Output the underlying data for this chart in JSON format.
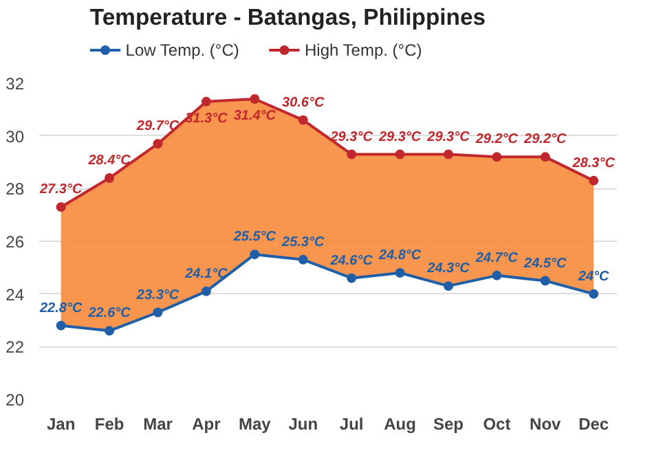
{
  "chart_data": {
    "type": "line",
    "title": "Temperature - Batangas, Philippines",
    "categories": [
      "Jan",
      "Feb",
      "Mar",
      "Apr",
      "May",
      "Jun",
      "Jul",
      "Aug",
      "Sep",
      "Oct",
      "Nov",
      "Dec"
    ],
    "series": [
      {
        "name": "Low Temp. (°C)",
        "color": "#1f5fa8",
        "values": [
          22.8,
          22.6,
          23.3,
          24.1,
          25.5,
          25.3,
          24.6,
          24.8,
          24.3,
          24.7,
          24.5,
          24.0
        ],
        "value_labels": [
          "22.8°C",
          "22.6°C",
          "23.3°C",
          "24.1°C",
          "25.5°C",
          "25.3°C",
          "24.6°C",
          "24.8°C",
          "24.3°C",
          "24.7°C",
          "24.5°C",
          "24°C"
        ]
      },
      {
        "name": "High Temp. (°C)",
        "color": "#c0282d",
        "values": [
          27.3,
          28.4,
          29.7,
          31.3,
          31.4,
          30.6,
          29.3,
          29.3,
          29.3,
          29.2,
          29.2,
          28.3
        ],
        "value_labels": [
          "27.3°C",
          "28.4°C",
          "29.7°C",
          "31.3°C",
          "31.4°C",
          "30.6°C",
          "29.3°C",
          "29.3°C",
          "29.3°C",
          "29.2°C",
          "29.2°C",
          "28.3°C"
        ]
      }
    ],
    "ylim": [
      20,
      32
    ],
    "yticks": [
      20,
      22,
      24,
      26,
      28,
      30,
      32
    ],
    "grid": "y",
    "legend": "top left",
    "marker": "circle",
    "line_style": "solid"
  }
}
